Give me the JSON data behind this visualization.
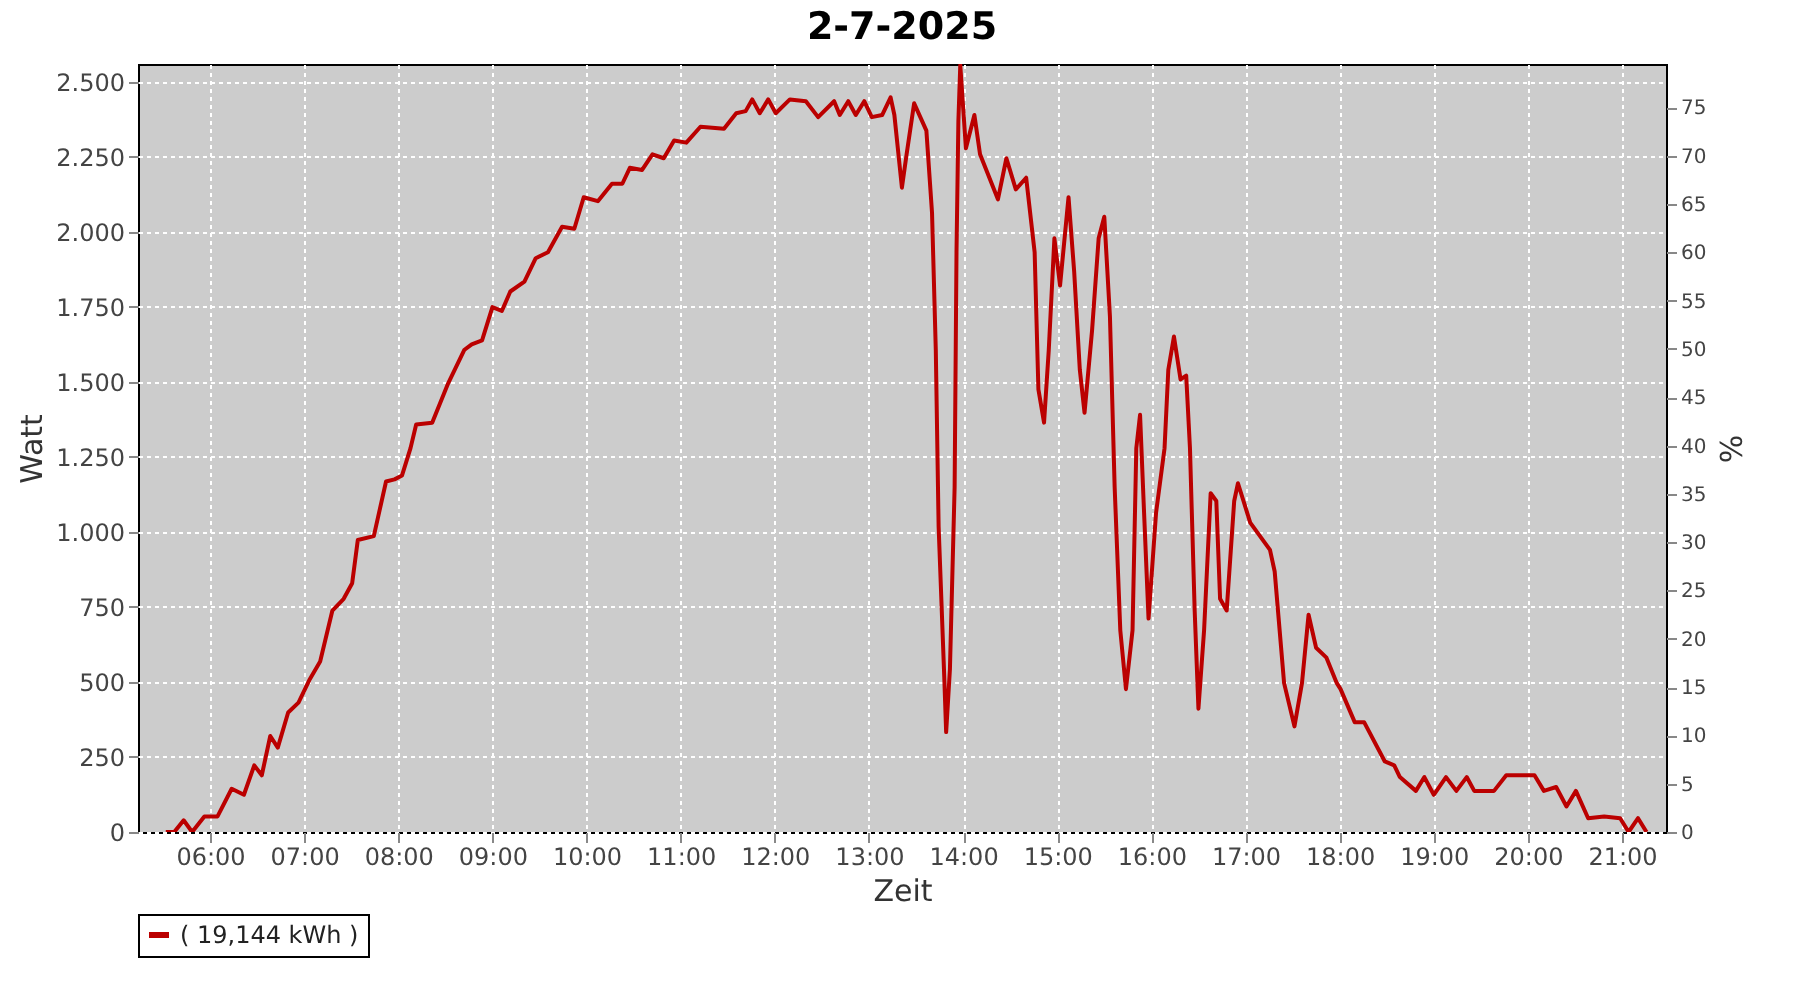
{
  "chart_data": {
    "type": "line",
    "title": "2-7-2025",
    "xlabel": "Zeit",
    "ylabel": "Watt",
    "y2label": "%",
    "x": [
      5.53,
      5.62,
      5.72,
      5.81,
      5.94,
      6.08,
      6.23,
      6.36,
      6.47,
      6.55,
      6.64,
      6.72,
      6.83,
      6.94,
      7.06,
      7.17,
      7.3,
      7.42,
      7.51,
      7.57,
      7.74,
      7.87,
      7.96,
      8.04,
      8.13,
      8.19,
      8.36,
      8.53,
      8.7,
      8.78,
      8.89,
      9.0,
      9.1,
      9.19,
      9.34,
      9.46,
      9.59,
      9.74,
      9.87,
      9.97,
      10.12,
      10.27,
      10.38,
      10.46,
      10.59,
      10.7,
      10.82,
      10.93,
      11.06,
      11.21,
      11.46,
      11.59,
      11.69,
      11.76,
      11.84,
      11.93,
      12.01,
      12.16,
      12.33,
      12.46,
      12.63,
      12.69,
      12.78,
      12.86,
      12.95,
      13.03,
      13.14,
      13.23,
      13.27,
      13.35,
      13.4,
      13.48,
      13.61,
      13.67,
      13.71,
      13.74,
      13.8,
      13.82,
      13.86,
      13.91,
      13.93,
      13.95,
      13.97,
      14.03,
      14.12,
      14.18,
      14.37,
      14.46,
      14.56,
      14.67,
      14.76,
      14.8,
      14.86,
      14.91,
      14.97,
      15.03,
      15.12,
      15.18,
      15.24,
      15.29,
      15.37,
      15.44,
      15.5,
      15.56,
      15.61,
      15.67,
      15.73,
      15.8,
      15.84,
      15.88,
      15.92,
      15.97,
      16.05,
      16.14,
      16.18,
      16.24,
      16.31,
      16.37,
      16.41,
      16.46,
      16.5,
      16.56,
      16.63,
      16.69,
      16.73,
      16.8,
      16.88,
      16.92,
      17.05,
      17.26,
      17.31,
      17.41,
      17.52,
      17.6,
      17.67,
      17.75,
      17.86,
      17.97,
      18.01,
      18.16,
      18.26,
      18.48,
      18.58,
      18.64,
      18.81,
      18.9,
      19.0,
      19.13,
      19.24,
      19.35,
      19.43,
      19.64,
      19.77,
      20.07,
      20.17,
      20.3,
      20.41,
      20.51,
      20.64,
      20.81,
      20.98,
      21.07,
      21.17,
      21.26
    ],
    "series": [
      {
        "name": "( 19,144 kWh )",
        "color": "#bb0000",
        "values": [
          0,
          0,
          39,
          0,
          52,
          52,
          144,
          124,
          222,
          189,
          320,
          281,
          398,
          431,
          509,
          568,
          738,
          777,
          829,
          973,
          986,
          1168,
          1175,
          1188,
          1279,
          1358,
          1364,
          1495,
          1606,
          1625,
          1638,
          1749,
          1736,
          1801,
          1834,
          1912,
          1932,
          2017,
          2010,
          2115,
          2102,
          2160,
          2160,
          2213,
          2206,
          2258,
          2245,
          2304,
          2297,
          2350,
          2343,
          2395,
          2402,
          2441,
          2395,
          2441,
          2395,
          2441,
          2435,
          2382,
          2435,
          2389,
          2435,
          2389,
          2435,
          2382,
          2389,
          2448,
          2389,
          2147,
          2258,
          2428,
          2337,
          2063,
          1606,
          1018,
          516,
          333,
          542,
          1149,
          1932,
          2369,
          2555,
          2278,
          2389,
          2258,
          2108,
          2245,
          2141,
          2180,
          1932,
          1475,
          1364,
          1606,
          1978,
          1821,
          2115,
          1867,
          1540,
          1397,
          1671,
          1978,
          2050,
          1717,
          1149,
          672,
          476,
          672,
          1279,
          1390,
          1083,
          711,
          1064,
          1279,
          1540,
          1651,
          1508,
          1521,
          1279,
          738,
          411,
          672,
          1129,
          1103,
          777,
          738,
          1103,
          1162,
          1031,
          940,
          868,
          496,
          352,
          496,
          724,
          614,
          581,
          496,
          476,
          366,
          366,
          235,
          222,
          183,
          137,
          183,
          124,
          183,
          137,
          183,
          137,
          137,
          189,
          189,
          137,
          150,
          85,
          137,
          46,
          52,
          46,
          0,
          46,
          0
        ]
      }
    ],
    "xlim": [
      5.235,
      21.467
    ],
    "xticks": [
      {
        "value": 6,
        "label": "06:00"
      },
      {
        "value": 7,
        "label": "07:00"
      },
      {
        "value": 8,
        "label": "08:00"
      },
      {
        "value": 9,
        "label": "09:00"
      },
      {
        "value": 10,
        "label": "10:00"
      },
      {
        "value": 11,
        "label": "11:00"
      },
      {
        "value": 12,
        "label": "12:00"
      },
      {
        "value": 13,
        "label": "13:00"
      },
      {
        "value": 14,
        "label": "14:00"
      },
      {
        "value": 15,
        "label": "15:00"
      },
      {
        "value": 16,
        "label": "16:00"
      },
      {
        "value": 17,
        "label": "17:00"
      },
      {
        "value": 18,
        "label": "18:00"
      },
      {
        "value": 19,
        "label": "19:00"
      },
      {
        "value": 20,
        "label": "20:00"
      },
      {
        "value": 21,
        "label": "21:00"
      }
    ],
    "ylim": [
      0,
      2559
    ],
    "yticks": [
      0,
      250,
      500,
      750,
      {
        "value": 1000,
        "label": "1.000"
      },
      {
        "value": 1250,
        "label": "1.250"
      },
      {
        "value": 1500,
        "label": "1.500"
      },
      {
        "value": 1750,
        "label": "1.750"
      },
      {
        "value": 2000,
        "label": "2.000"
      },
      {
        "value": 2250,
        "label": "2.250"
      },
      {
        "value": 2500,
        "label": "2.500"
      }
    ],
    "y2lim": [
      0,
      79.5
    ],
    "y2ticks": [
      0,
      5,
      10,
      15,
      20,
      25,
      30,
      35,
      40,
      45,
      50,
      55,
      60,
      65,
      70,
      75
    ],
    "grid": true,
    "legend": "bottom",
    "line_style": "solid"
  }
}
